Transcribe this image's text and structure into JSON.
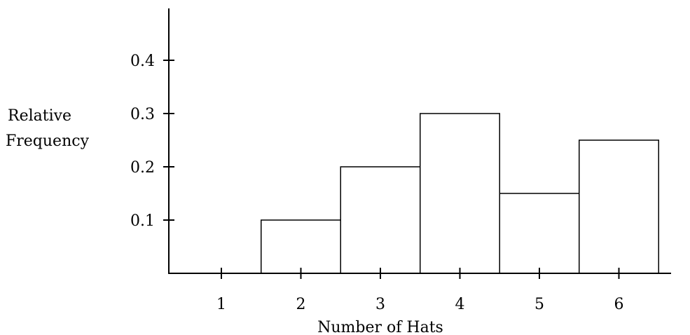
{
  "chart_data": {
    "type": "bar",
    "categories": [
      "1",
      "2",
      "3",
      "4",
      "5",
      "6"
    ],
    "values": [
      0,
      0.1,
      0.2,
      0.3,
      0.15,
      0.25
    ],
    "xlabel": "Number of Hats",
    "ylabel_lines": [
      "Relative",
      "Frequency"
    ],
    "yticks": [
      "0.1",
      "0.2",
      "0.3",
      "0.4"
    ],
    "ylim": [
      0,
      0.5
    ],
    "grid": false,
    "legend": "none"
  }
}
